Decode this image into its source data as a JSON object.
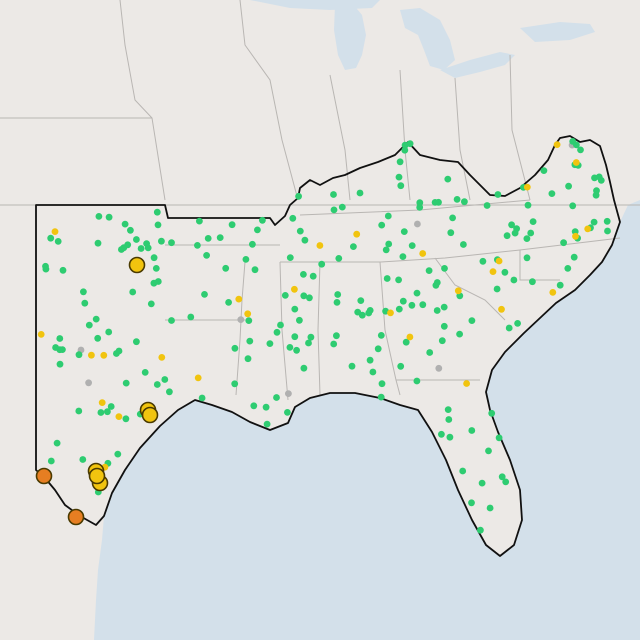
{
  "map": {
    "colors": {
      "water": "#d3e0ea",
      "land": "#ece9e6",
      "state_border": "#b9b6b3",
      "region_outline": "#111111",
      "good": "#2ecc71",
      "moderate": "#f1c40f",
      "usg": "#e67e22",
      "no_data": "#b0b0b0",
      "marker_stroke": "#4a3a00"
    },
    "legend_categories": [
      "good",
      "moderate",
      "usg",
      "no_data"
    ],
    "small_sites": {
      "good_count": 236,
      "moderate_count": 28,
      "no_data_count": 7
    },
    "large_markers": [
      {
        "category": "moderate"
      },
      {
        "category": "moderate"
      },
      {
        "category": "moderate"
      },
      {
        "category": "moderate"
      },
      {
        "category": "moderate"
      },
      {
        "category": "moderate"
      },
      {
        "category": "usg"
      },
      {
        "category": "usg"
      }
    ]
  }
}
